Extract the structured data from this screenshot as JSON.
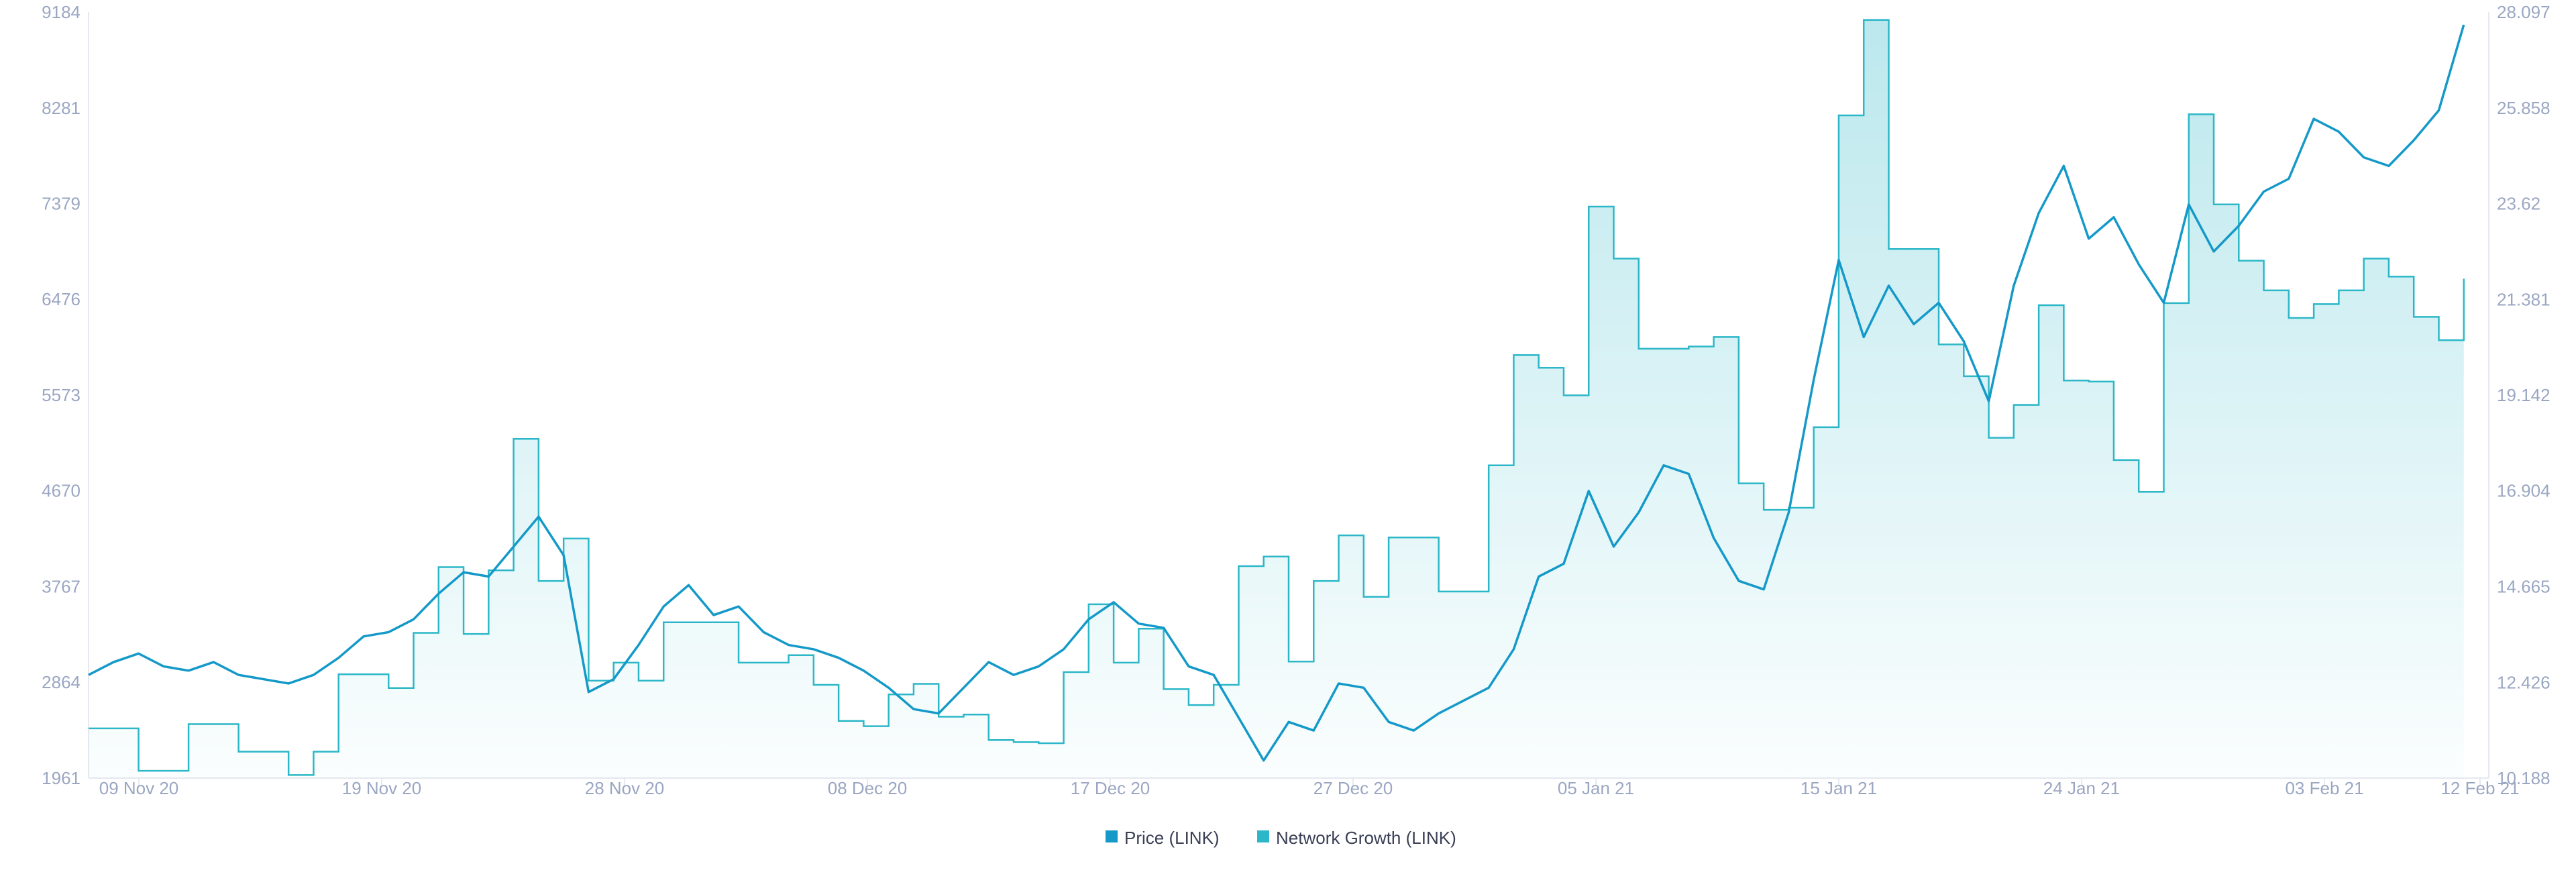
{
  "chart_data": {
    "type": "line",
    "x_tick_labels": [
      "09 Nov 20",
      "19 Nov 20",
      "28 Nov 20",
      "08 Dec 20",
      "17 Dec 20",
      "27 Dec 20",
      "05 Jan 21",
      "15 Jan 21",
      "24 Jan 21",
      "03 Feb 21",
      "12 Feb 21"
    ],
    "y_left": {
      "ticks": [
        "9184",
        "8281",
        "7379",
        "6476",
        "5573",
        "4670",
        "3767",
        "2864",
        "1961"
      ],
      "range": [
        1961,
        9184
      ]
    },
    "y_right": {
      "ticks": [
        "28.097",
        "25.858",
        "23.62",
        "21.381",
        "19.142",
        "16.904",
        "14.665",
        "12.426",
        "10.188"
      ],
      "range": [
        10.188,
        28.097
      ]
    },
    "x_range": [
      "08 Nov 20",
      "12 Feb 21"
    ],
    "legend": {
      "position": "bottom-center",
      "items": [
        {
          "label": "Price (LINK)",
          "color": "#1499c8"
        },
        {
          "label": "Network Growth (LINK)",
          "color": "#2bb7c7"
        }
      ]
    },
    "grid": false,
    "series": [
      {
        "name": "Price (LINK)",
        "axis": "right",
        "color": "#1499c8",
        "kind": "line",
        "x": [
          "2020-11-08",
          "2020-11-09",
          "2020-11-10",
          "2020-11-11",
          "2020-11-12",
          "2020-11-13",
          "2020-11-14",
          "2020-11-15",
          "2020-11-16",
          "2020-11-17",
          "2020-11-18",
          "2020-11-19",
          "2020-11-20",
          "2020-11-21",
          "2020-11-22",
          "2020-11-23",
          "2020-11-24",
          "2020-11-25",
          "2020-11-26",
          "2020-11-27",
          "2020-11-28",
          "2020-11-29",
          "2020-11-30",
          "2020-12-01",
          "2020-12-02",
          "2020-12-03",
          "2020-12-04",
          "2020-12-05",
          "2020-12-06",
          "2020-12-07",
          "2020-12-08",
          "2020-12-09",
          "2020-12-10",
          "2020-12-11",
          "2020-12-12",
          "2020-12-13",
          "2020-12-14",
          "2020-12-15",
          "2020-12-16",
          "2020-12-17",
          "2020-12-18",
          "2020-12-19",
          "2020-12-20",
          "2020-12-21",
          "2020-12-22",
          "2020-12-23",
          "2020-12-24",
          "2020-12-25",
          "2020-12-26",
          "2020-12-27",
          "2020-12-28",
          "2020-12-29",
          "2020-12-30",
          "2020-12-31",
          "2021-01-01",
          "2021-01-02",
          "2021-01-03",
          "2021-01-04",
          "2021-01-05",
          "2021-01-06",
          "2021-01-07",
          "2021-01-08",
          "2021-01-09",
          "2021-01-10",
          "2021-01-11",
          "2021-01-12",
          "2021-01-13",
          "2021-01-14",
          "2021-01-15",
          "2021-01-16",
          "2021-01-17",
          "2021-01-18",
          "2021-01-19",
          "2021-01-20",
          "2021-01-21",
          "2021-01-22",
          "2021-01-23",
          "2021-01-24",
          "2021-01-25",
          "2021-01-26",
          "2021-01-27",
          "2021-01-28",
          "2021-01-29",
          "2021-01-30",
          "2021-01-31",
          "2021-02-01",
          "2021-02-02",
          "2021-02-03",
          "2021-02-04",
          "2021-02-05",
          "2021-02-06",
          "2021-02-07",
          "2021-02-08",
          "2021-02-09",
          "2021-02-10",
          "2021-02-11"
        ],
        "values": [
          12.6,
          12.9,
          13.1,
          12.8,
          12.7,
          12.9,
          12.6,
          12.5,
          12.4,
          12.6,
          13.0,
          13.5,
          13.6,
          13.9,
          14.5,
          15.0,
          14.9,
          15.6,
          16.3,
          15.4,
          12.2,
          12.5,
          13.3,
          14.2,
          14.7,
          14.0,
          14.2,
          13.6,
          13.3,
          13.2,
          13.0,
          12.7,
          12.3,
          11.8,
          11.7,
          12.3,
          12.9,
          12.6,
          12.8,
          13.2,
          13.9,
          14.3,
          13.8,
          13.7,
          12.8,
          12.6,
          11.6,
          10.6,
          11.5,
          11.3,
          12.4,
          12.3,
          11.5,
          11.3,
          11.7,
          12.0,
          12.3,
          13.2,
          14.9,
          15.2,
          16.9,
          15.6,
          16.4,
          17.5,
          17.3,
          15.8,
          14.8,
          14.6,
          16.4,
          19.5,
          22.3,
          20.5,
          21.7,
          20.8,
          21.3,
          20.4,
          19.0,
          21.7,
          23.4,
          24.5,
          22.8,
          23.3,
          22.2,
          21.3,
          23.6,
          22.5,
          23.1,
          23.9,
          24.2,
          25.6,
          25.3,
          24.7,
          24.5,
          25.1,
          25.8,
          27.8
        ]
      },
      {
        "name": "Network Growth (LINK)",
        "axis": "left",
        "color": "#2bb7c7",
        "kind": "area-step",
        "x": [
          "2020-11-08",
          "2020-11-10",
          "2020-11-12",
          "2020-11-14",
          "2020-11-16",
          "2020-11-17",
          "2020-11-18",
          "2020-11-20",
          "2020-11-21",
          "2020-11-22",
          "2020-11-23",
          "2020-11-24",
          "2020-11-25",
          "2020-11-26",
          "2020-11-27",
          "2020-11-28",
          "2020-11-29",
          "2020-11-30",
          "2020-12-01",
          "2020-12-02",
          "2020-12-04",
          "2020-12-05",
          "2020-12-06",
          "2020-12-07",
          "2020-12-08",
          "2020-12-09",
          "2020-12-10",
          "2020-12-11",
          "2020-12-12",
          "2020-12-13",
          "2020-12-14",
          "2020-12-15",
          "2020-12-16",
          "2020-12-17",
          "2020-12-18",
          "2020-12-19",
          "2020-12-20",
          "2020-12-21",
          "2020-12-22",
          "2020-12-23",
          "2020-12-24",
          "2020-12-25",
          "2020-12-26",
          "2020-12-27",
          "2020-12-28",
          "2020-12-29",
          "2020-12-30",
          "2020-12-31",
          "2021-01-01",
          "2021-01-02",
          "2021-01-03",
          "2021-01-04",
          "2021-01-05",
          "2021-01-06",
          "2021-01-07",
          "2021-01-08",
          "2021-01-09",
          "2021-01-10",
          "2021-01-11",
          "2021-01-12",
          "2021-01-13",
          "2021-01-14",
          "2021-01-15",
          "2021-01-16",
          "2021-01-17",
          "2021-01-18",
          "2021-01-19",
          "2021-01-20",
          "2021-01-21",
          "2021-01-22",
          "2021-01-23",
          "2021-01-24",
          "2021-01-25",
          "2021-01-26",
          "2021-01-27",
          "2021-01-28",
          "2021-01-29",
          "2021-01-30",
          "2021-01-31",
          "2021-02-01",
          "2021-02-02",
          "2021-02-03",
          "2021-02-04",
          "2021-02-05",
          "2021-02-06",
          "2021-02-07",
          "2021-02-08",
          "2021-02-09",
          "2021-02-10",
          "2021-02-11"
        ],
        "values": [
          2430,
          2030,
          2470,
          2210,
          1990,
          2210,
          2940,
          2810,
          3330,
          3950,
          3320,
          3920,
          5160,
          3820,
          4220,
          2880,
          3050,
          2880,
          3430,
          3430,
          3050,
          3050,
          3120,
          2840,
          2500,
          2450,
          2750,
          2850,
          2540,
          2560,
          2320,
          2300,
          2290,
          2960,
          3600,
          3050,
          3370,
          2800,
          2650,
          2840,
          3960,
          4050,
          3060,
          3820,
          4250,
          3670,
          4230,
          4230,
          3720,
          3720,
          4910,
          5950,
          5830,
          5570,
          7350,
          6860,
          6010,
          6010,
          6030,
          6120,
          4740,
          4490,
          4510,
          5270,
          8210,
          9110,
          6950,
          6950,
          6050,
          5750,
          5170,
          5480,
          6420,
          5710,
          5700,
          4960,
          4660,
          6440,
          8220,
          7370,
          6840,
          6560,
          6300,
          6430,
          6560,
          6860,
          6690,
          6310,
          6090,
          6670
        ]
      }
    ]
  }
}
